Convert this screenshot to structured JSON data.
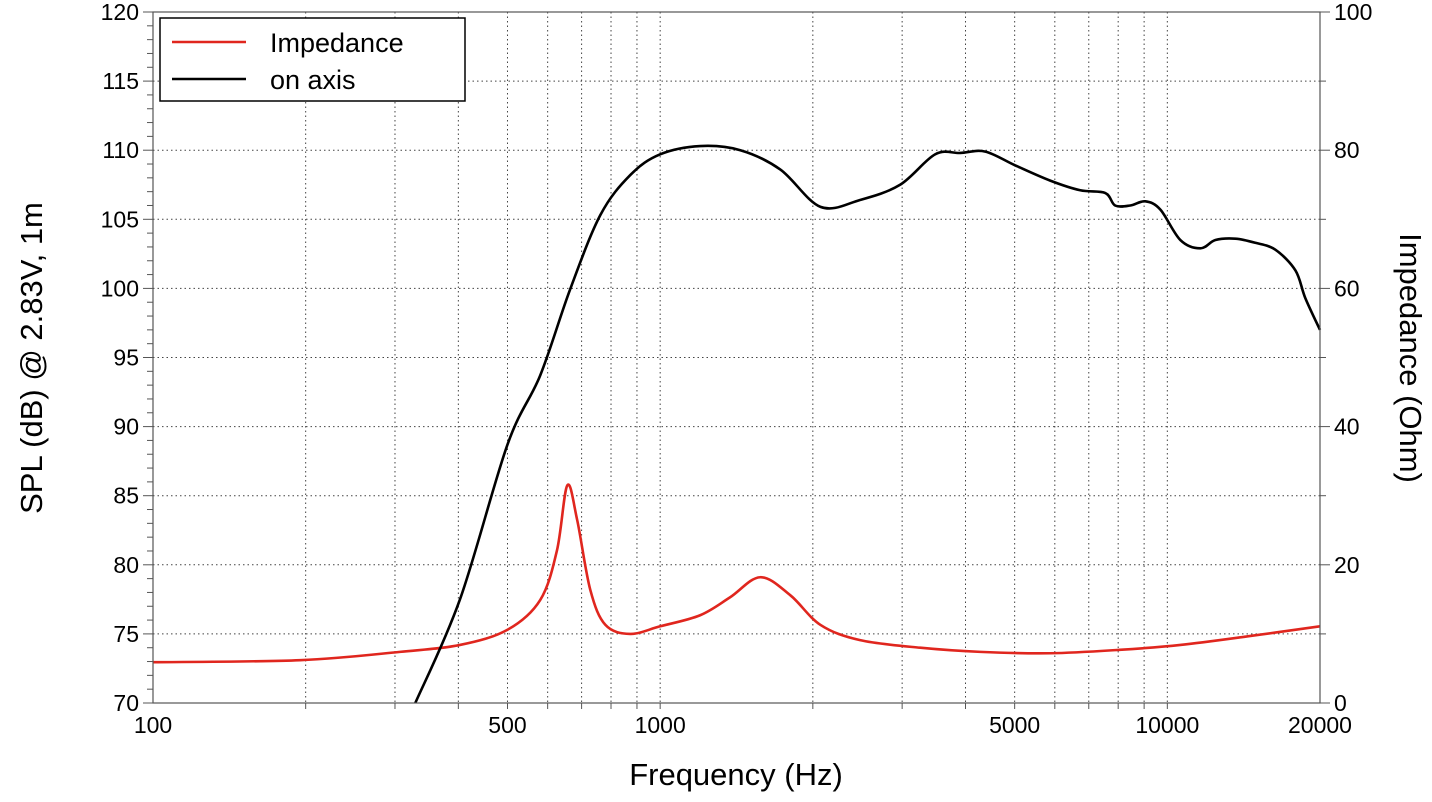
{
  "chart_data": {
    "type": "line",
    "xlabel": "Frequency (Hz)",
    "ylabel": "SPL (dB) @ 2.83V, 1m",
    "y2label": "Impedance (Ohm)",
    "xscale": "log",
    "xlim": [
      100,
      20000
    ],
    "ylim": [
      70,
      120
    ],
    "y2lim": [
      0,
      100
    ],
    "grid": true,
    "legend_position": "top-left",
    "x_tick_labels": [
      "100",
      "500",
      "1000",
      "5000",
      "10000",
      "20000"
    ],
    "x_ticks": [
      100,
      500,
      1000,
      5000,
      10000,
      20000
    ],
    "y_ticks": [
      70,
      75,
      80,
      85,
      90,
      95,
      100,
      105,
      110,
      115,
      120
    ],
    "y_tick_labels": [
      "70",
      "75",
      "80",
      "85",
      "90",
      "95",
      "100",
      "105",
      "110",
      "115",
      "120"
    ],
    "y2_ticks": [
      0,
      20,
      40,
      60,
      80,
      100
    ],
    "y2_tick_labels": [
      "0",
      "20",
      "40",
      "60",
      "80",
      "100"
    ],
    "series": [
      {
        "name": "Impedance",
        "axis": "right",
        "color": "#e0261e",
        "x": [
          100,
          195,
          307,
          403,
          500,
          580,
          626,
          656,
          686,
          728,
          780,
          873,
          1000,
          1199,
          1374,
          1575,
          1805,
          2071,
          2478,
          3257,
          4275,
          5876,
          8060,
          10610,
          14590,
          20000
        ],
        "y": [
          5.9,
          6.2,
          7.4,
          8.4,
          10.6,
          14.9,
          22.1,
          31.5,
          26.5,
          16.4,
          11.3,
          10.0,
          11.1,
          12.7,
          15.3,
          18.2,
          15.6,
          11.3,
          9.1,
          8.0,
          7.4,
          7.2,
          7.7,
          8.4,
          9.7,
          11.1
        ]
      },
      {
        "name": "on axis",
        "axis": "left",
        "color": "#000000",
        "x": [
          329,
          403,
          500,
          580,
          664,
          762,
          873,
          1000,
          1199,
          1439,
          1726,
          2071,
          2478,
          2972,
          3484,
          3908,
          4376,
          5014,
          5876,
          6735,
          7547,
          7890,
          8453,
          9050,
          9690,
          10610,
          11620,
          12440,
          13620,
          14910,
          16330,
          17890,
          18710,
          20000
        ],
        "y": [
          70,
          77.5,
          88.7,
          93.7,
          99.9,
          105.3,
          108.2,
          109.7,
          110.3,
          110.0,
          108.6,
          105.9,
          106.4,
          107.5,
          109.7,
          109.8,
          109.9,
          108.9,
          107.8,
          107.1,
          106.9,
          106.0,
          106.0,
          106.3,
          105.7,
          103.5,
          102.9,
          103.5,
          103.6,
          103.3,
          102.8,
          101.3,
          99.3,
          97.0
        ]
      }
    ]
  }
}
